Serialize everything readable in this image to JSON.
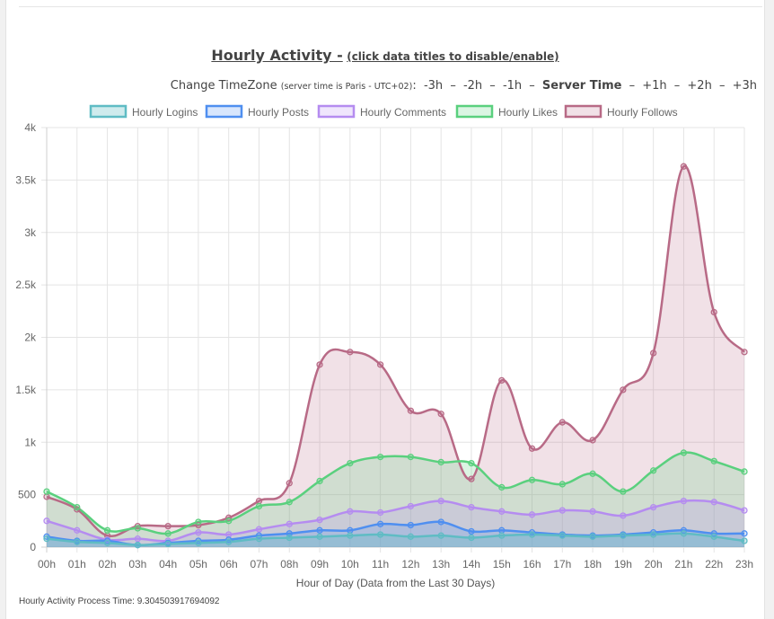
{
  "header": {
    "title": "Hourly Activity -",
    "title_hint": "(click data titles to disable/enable)"
  },
  "timezone": {
    "label": "Change TimeZone",
    "server_note": "(server time is Paris - UTC+02)",
    "colon": ":",
    "separator": "–",
    "options": [
      "-3h",
      "-2h",
      "-1h",
      "Server Time",
      "+1h",
      "+2h",
      "+3h"
    ],
    "selected": "Server Time"
  },
  "footer": {
    "process_time": "Hourly Activity Process Time: 9.304503917694092"
  },
  "chart_data": {
    "type": "area",
    "xlabel": "Hour of Day (Data from the Last 30 Days)",
    "ylabel": "",
    "categories": [
      "00h",
      "01h",
      "02h",
      "03h",
      "04h",
      "05h",
      "06h",
      "07h",
      "08h",
      "09h",
      "10h",
      "11h",
      "12h",
      "13h",
      "14h",
      "15h",
      "16h",
      "17h",
      "18h",
      "19h",
      "20h",
      "21h",
      "22h",
      "23h"
    ],
    "ylim": [
      0,
      4000
    ],
    "yticks": [
      0,
      500,
      1000,
      1500,
      2000,
      2500,
      3000,
      3500,
      4000
    ],
    "ytick_labels": [
      "0",
      "500",
      "1k",
      "1.5k",
      "2k",
      "2.5k",
      "3k",
      "3.5k",
      "4k"
    ],
    "grid": true,
    "legend_position": "top",
    "series": [
      {
        "name": "Hourly Logins",
        "color": "#5fbcc4",
        "fill": "rgba(95,188,196,0.30)",
        "values": [
          80,
          50,
          40,
          20,
          30,
          40,
          50,
          80,
          90,
          100,
          110,
          120,
          100,
          110,
          90,
          110,
          120,
          110,
          100,
          110,
          120,
          130,
          100,
          60
        ]
      },
      {
        "name": "Hourly Posts",
        "color": "#4f8ff0",
        "fill": "rgba(79,143,240,0.22)",
        "values": [
          100,
          60,
          60,
          20,
          40,
          60,
          70,
          110,
          130,
          160,
          160,
          220,
          210,
          240,
          150,
          160,
          140,
          120,
          110,
          120,
          140,
          160,
          130,
          130
        ]
      },
      {
        "name": "Hourly Comments",
        "color": "#b58cf0",
        "fill": "rgba(181,140,240,0.22)",
        "values": [
          250,
          160,
          70,
          80,
          60,
          140,
          120,
          170,
          220,
          260,
          340,
          330,
          390,
          440,
          380,
          340,
          310,
          350,
          340,
          300,
          380,
          440,
          430,
          350
        ]
      },
      {
        "name": "Hourly Likes",
        "color": "#5ad07e",
        "fill": "rgba(90,208,126,0.22)",
        "values": [
          530,
          380,
          160,
          180,
          130,
          240,
          250,
          390,
          430,
          630,
          800,
          860,
          860,
          810,
          800,
          570,
          640,
          600,
          700,
          530,
          730,
          900,
          820,
          720
        ]
      },
      {
        "name": "Hourly Follows",
        "color": "#b86a86",
        "fill": "rgba(184,106,134,0.20)",
        "values": [
          480,
          360,
          110,
          200,
          200,
          210,
          280,
          440,
          610,
          1740,
          1860,
          1740,
          1300,
          1270,
          650,
          1590,
          940,
          1190,
          1020,
          1500,
          1850,
          3630,
          2240,
          1860
        ]
      }
    ]
  }
}
